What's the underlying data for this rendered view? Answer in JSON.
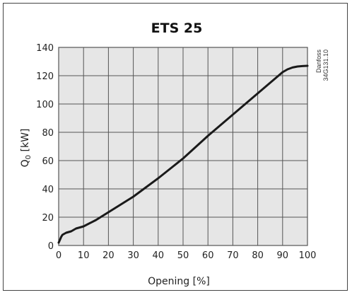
{
  "chart_data": {
    "type": "line",
    "title": "ETS 25",
    "xlabel": "Opening [%]",
    "ylabel_main": "Q",
    "ylabel_sub": "0",
    "ylabel_unit": " [kW]",
    "side_note": [
      "Danfoss",
      "34G131.10"
    ],
    "xlim": [
      0,
      100
    ],
    "ylim": [
      0,
      140
    ],
    "x_ticks": [
      "0",
      "10",
      "20",
      "30",
      "40",
      "50",
      "60",
      "70",
      "80",
      "90",
      "100"
    ],
    "y_ticks": [
      "0",
      "20",
      "40",
      "60",
      "80",
      "100",
      "120",
      "140"
    ],
    "grid": true,
    "colors": {
      "plot_bg": "#e6e6e6",
      "grid": "#555555",
      "line": "#1a1a1a"
    },
    "series": [
      {
        "x": [
          0,
          0.5,
          1,
          1.5,
          2,
          3,
          4,
          5,
          7,
          10,
          15,
          20,
          25,
          30,
          35,
          40,
          45,
          50,
          55,
          60,
          65,
          70,
          75,
          80,
          85,
          88,
          90,
          92,
          94,
          96,
          98,
          100
        ],
        "values": [
          2,
          4,
          6,
          7.5,
          8,
          9,
          9.5,
          10,
          12,
          13.5,
          18,
          23.5,
          29,
          34.5,
          41,
          47.5,
          54.5,
          61.5,
          69.5,
          77.5,
          85,
          92.5,
          100,
          107.5,
          115,
          119.5,
          122.5,
          124.5,
          125.8,
          126.5,
          126.8,
          127
        ]
      }
    ]
  }
}
